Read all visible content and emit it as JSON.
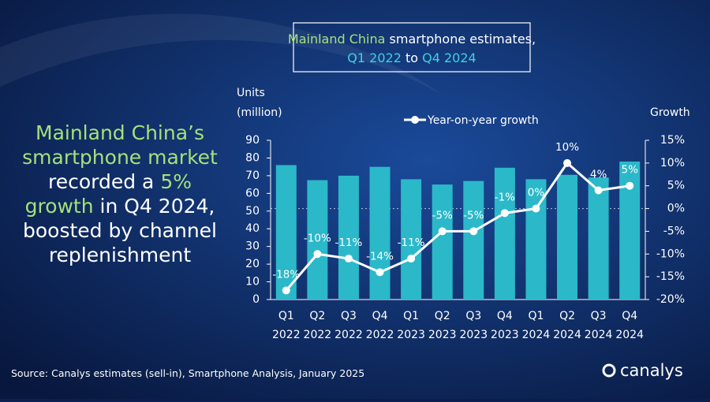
{
  "title_lines": [
    [
      {
        "text": "Mainland China",
        "color": "#a6e07a"
      },
      {
        "text": " smartphone estimates,",
        "color": "#ffffff"
      }
    ],
    [
      {
        "text": "Q1 2022",
        "color": "#3fd0e0"
      },
      {
        "text": " to ",
        "color": "#ffffff"
      },
      {
        "text": "Q4 2024",
        "color": "#3fd0e0"
      }
    ]
  ],
  "headline_lines": [
    [
      {
        "text": "Mainland China’s",
        "color": "#a6e07a"
      }
    ],
    [
      {
        "text": "smartphone market",
        "color": "#a6e07a"
      }
    ],
    [
      {
        "text": "recorded a ",
        "color": "#ffffff"
      },
      {
        "text": "5%",
        "color": "#a6e07a"
      }
    ],
    [
      {
        "text": "growth",
        "color": "#a6e07a"
      },
      {
        "text": " in Q4 2024,",
        "color": "#ffffff"
      }
    ],
    [
      {
        "text": "boosted by channel",
        "color": "#ffffff"
      }
    ],
    [
      {
        "text": "replenishment",
        "color": "#ffffff"
      }
    ]
  ],
  "source": "Source: Canalys estimates (sell-in), Smartphone Analysis, January 2025",
  "logo": "canalys",
  "chart_data": {
    "type": "bar-line",
    "y_label": [
      "Units",
      "(million)"
    ],
    "y2_label": "Growth",
    "categories": [
      [
        "Q1",
        "2022"
      ],
      [
        "Q2",
        "2022"
      ],
      [
        "Q3",
        "2022"
      ],
      [
        "Q4",
        "2022"
      ],
      [
        "Q1",
        "2023"
      ],
      [
        "Q2",
        "2023"
      ],
      [
        "Q3",
        "2023"
      ],
      [
        "Q4",
        "2023"
      ],
      [
        "Q1",
        "2024"
      ],
      [
        "Q2",
        "2024"
      ],
      [
        "Q3",
        "2024"
      ],
      [
        "Q4",
        "2024"
      ]
    ],
    "series": [
      {
        "name": "Units",
        "color": "#2bb8c9",
        "values": [
          76,
          67.5,
          70,
          75,
          68,
          65,
          67,
          74.5,
          68,
          70.5,
          69,
          78
        ]
      },
      {
        "name": "Year-on-year growth",
        "color": "#ffffff",
        "axis": "y2",
        "values": [
          -18,
          -10,
          -11,
          -14,
          -11,
          -5,
          -5,
          -1,
          0,
          10,
          4,
          5
        ],
        "value_labels": [
          "-18%",
          "-10%",
          "-11%",
          "-14%",
          "-11%",
          "-5%",
          "-5%",
          "-1%",
          "0%",
          "10%",
          "4%",
          "5%"
        ]
      }
    ],
    "ylim": [
      0,
      90
    ],
    "yticks": [
      0,
      10,
      20,
      30,
      40,
      50,
      60,
      70,
      80,
      90
    ],
    "y2lim": [
      -20,
      15
    ],
    "y2ticks": [
      {
        "value": 15,
        "label": "15%"
      },
      {
        "value": 10,
        "label": "10%"
      },
      {
        "value": 5,
        "label": "5%"
      },
      {
        "value": 0,
        "label": "0%"
      },
      {
        "value": -5,
        "label": "-5%"
      },
      {
        "value": -10,
        "label": "-10%"
      },
      {
        "value": -15,
        "label": "-15%"
      },
      {
        "value": -20,
        "label": "-20%"
      }
    ]
  }
}
